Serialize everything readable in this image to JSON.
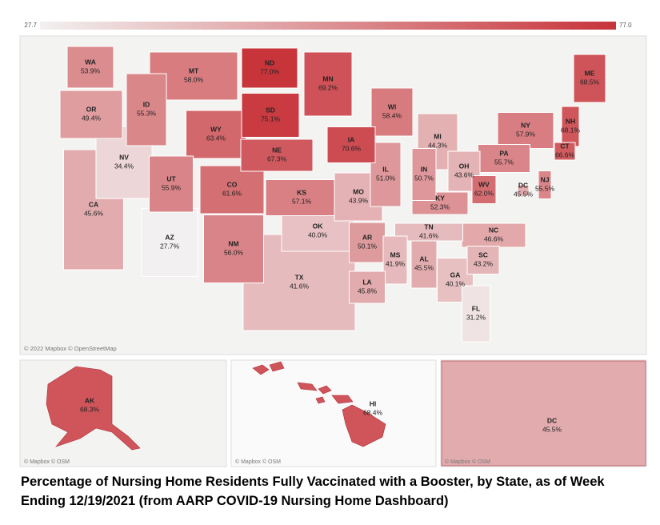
{
  "chart_data": {
    "type": "choropleth",
    "color_scale": {
      "colors": [
        "#f2f0f0",
        "#c7343a"
      ],
      "ticks": [
        27.7,
        {
          "value": 77,
          "label": "77.0"
        }
      ]
    },
    "categories": [
      "WA",
      "MT",
      "ND",
      "MN",
      "ME",
      "OR",
      "ID",
      "SD",
      "WI",
      "MI",
      "NY",
      "NH",
      "WY",
      "IA",
      "NE",
      "CT",
      "PA",
      "NV",
      "UT",
      "CO",
      "IL",
      "IN",
      "OH",
      "NJ",
      "KS",
      "MO",
      "WV",
      "DC",
      "KY",
      "CA",
      "OK",
      "TN",
      "NC",
      "AZ",
      "NM",
      "AR",
      "SC",
      "MS",
      "AL",
      "GA",
      "TX",
      "LA",
      "FL"
    ],
    "values": [
      53.9,
      58.0,
      77.0,
      69.2,
      68.5,
      49.4,
      55.3,
      75.1,
      58.4,
      44.3,
      57.9,
      68.1,
      63.4,
      70.6,
      67.3,
      66.6,
      55.7,
      34.4,
      55.9,
      61.6,
      51.0,
      50.7,
      43.6,
      55.5,
      57.1,
      43.9,
      62.0,
      45.5,
      52.3,
      45.6,
      40.0,
      41.6,
      46.6,
      27.7,
      56.0,
      50.1,
      43.2,
      41.9,
      45.5,
      40.1,
      41.6,
      45.8,
      31.2
    ],
    "value_labels": [
      "53.9%",
      "58.0%",
      "77.0%",
      "69.2%",
      "68.5%",
      "49.4%",
      "55.3%",
      "75.1%",
      "58.4%",
      "44.3%",
      "57.9%",
      "68.1%",
      "63.4%",
      "70.6%",
      "67.3%",
      "66.6%",
      "55.7%",
      "34.4%",
      "55.9%",
      "61.6%",
      "51.0%",
      "50.7%",
      "43.6%",
      "55.5%",
      "57.1%",
      "43.9%",
      "62.0%",
      "45.5%",
      "52.3%",
      "45.6%",
      "40.0%",
      "41.6%",
      "46.6%",
      "27.7%",
      "56.0%",
      "50.1%",
      "43.2%",
      "41.9%",
      "45.5%",
      "40.1%",
      "41.6%",
      "45.8%",
      "31.2%"
    ],
    "attribution": "© 2022 Mapbox © OpenStreetMap",
    "insets": [
      {
        "categories": [
          "AK"
        ],
        "values": [
          68.3
        ],
        "value_labels": [
          "68.3%"
        ],
        "attribution": "© Mapbox © OSM"
      },
      {
        "categories": [
          "HI"
        ],
        "values": [
          68.4
        ],
        "value_labels": [
          "68.4%"
        ],
        "attribution": "© Mapbox © OSM"
      },
      {
        "categories": [
          "DC"
        ],
        "values": [
          45.5
        ],
        "value_labels": [
          "45.5%"
        ],
        "attribution": "© Mapbox © OSM"
      }
    ],
    "caption": "Percentage of Nursing Home Residents Fully Vaccinated with a Booster, by State, as of Week Ending 12/19/2021 (from AARP COVID-19 Nursing Home Dashboard)"
  }
}
